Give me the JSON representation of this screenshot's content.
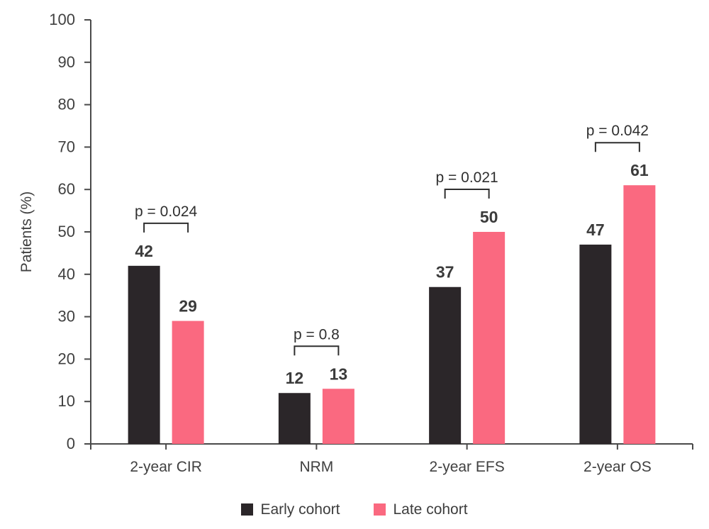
{
  "chart_data": {
    "type": "bar",
    "title": "",
    "ylabel": "Patients (%)",
    "xlabel": "",
    "ylim": [
      0,
      100
    ],
    "ytick_step": 10,
    "grid": false,
    "legend_position": "bottom",
    "categories": [
      "2-year CIR",
      "NRM",
      "2-year EFS",
      "2-year OS"
    ],
    "series": [
      {
        "name": "Early cohort",
        "color": "#2b2629",
        "values": [
          42,
          12,
          37,
          47
        ]
      },
      {
        "name": "Late cohort",
        "color": "#fa6980",
        "values": [
          29,
          13,
          50,
          61
        ]
      }
    ],
    "p_values": [
      "p = 0.024",
      "p = 0.8",
      "p = 0.021",
      "p = 0.042"
    ],
    "colors": {
      "axis": "#4a4a4a",
      "tick_text": "#404040",
      "value_text": "#3b3b3b",
      "bracket": "#2f2f2f",
      "p_text": "#2f2f2f"
    }
  }
}
